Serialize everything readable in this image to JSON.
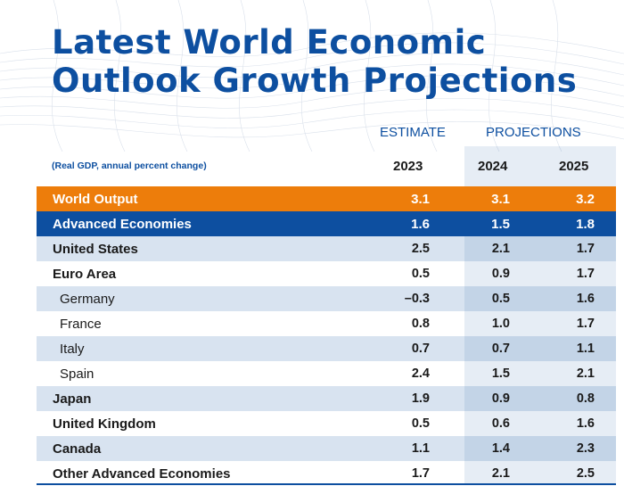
{
  "title": {
    "line1": "Latest World Economic",
    "line2": "Outlook Growth Projections"
  },
  "header": {
    "estimate": "ESTIMATE",
    "projections": "PROJECTIONS",
    "note": "(Real GDP, annual percent change)",
    "years": [
      "2023",
      "2024",
      "2025"
    ]
  },
  "rows": [
    {
      "label": "World Output",
      "v2023": "3.1",
      "v2024": "3.1",
      "v2025": "3.2"
    },
    {
      "label": "Advanced Economies",
      "v2023": "1.6",
      "v2024": "1.5",
      "v2025": "1.8"
    },
    {
      "label": "United States",
      "v2023": "2.5",
      "v2024": "2.1",
      "v2025": "1.7"
    },
    {
      "label": "Euro Area",
      "v2023": "0.5",
      "v2024": "0.9",
      "v2025": "1.7"
    },
    {
      "label": "Germany",
      "v2023": "–0.3",
      "v2024": "0.5",
      "v2025": "1.6"
    },
    {
      "label": "France",
      "v2023": "0.8",
      "v2024": "1.0",
      "v2025": "1.7"
    },
    {
      "label": "Italy",
      "v2023": "0.7",
      "v2024": "0.7",
      "v2025": "1.1"
    },
    {
      "label": "Spain",
      "v2023": "2.4",
      "v2024": "1.5",
      "v2025": "2.1"
    },
    {
      "label": "Japan",
      "v2023": "1.9",
      "v2024": "0.9",
      "v2025": "0.8"
    },
    {
      "label": "United Kingdom",
      "v2023": "0.5",
      "v2024": "0.6",
      "v2025": "1.6"
    },
    {
      "label": "Canada",
      "v2023": "1.1",
      "v2024": "1.4",
      "v2025": "2.3"
    },
    {
      "label": "Other Advanced Economies",
      "v2023": "1.7",
      "v2024": "2.1",
      "v2025": "2.5"
    }
  ],
  "colors": {
    "brand_blue": "#0d4fa0",
    "world_orange": "#ed7d0b"
  }
}
